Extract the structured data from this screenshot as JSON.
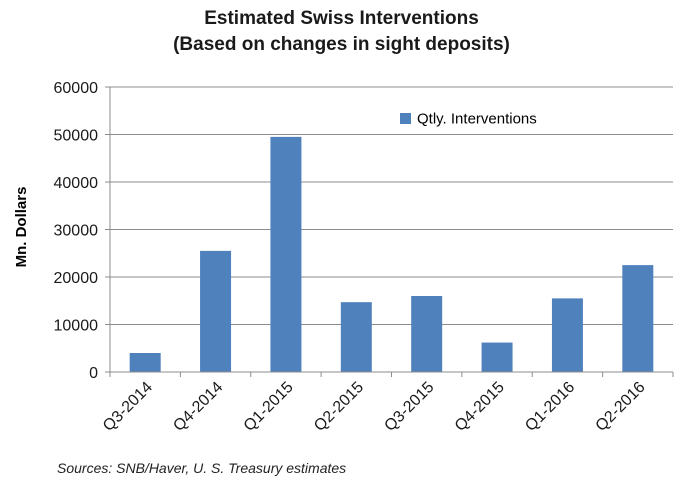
{
  "chart_data": {
    "type": "bar",
    "title": [
      "Estimated Swiss Interventions",
      "(Based on changes in sight deposits)"
    ],
    "xlabel": "",
    "ylabel": "Mn. Dollars",
    "ylim": [
      0,
      60000
    ],
    "yticks": [
      0,
      10000,
      20000,
      30000,
      40000,
      50000,
      60000
    ],
    "categories": [
      "Q3-2014",
      "Q4-2014",
      "Q1-2015",
      "Q2-2015",
      "Q3-2015",
      "Q4-2015",
      "Q1-2016",
      "Q2-2016"
    ],
    "series": [
      {
        "name": "Qtly. Interventions",
        "values": [
          4000,
          25500,
          49500,
          14700,
          16000,
          6200,
          15500,
          22500
        ],
        "color": "#4f81bd"
      }
    ],
    "grid": true,
    "legend_position": "top-right",
    "source": "Sources: SNB/Haver, U. S. Treasury estimates"
  }
}
